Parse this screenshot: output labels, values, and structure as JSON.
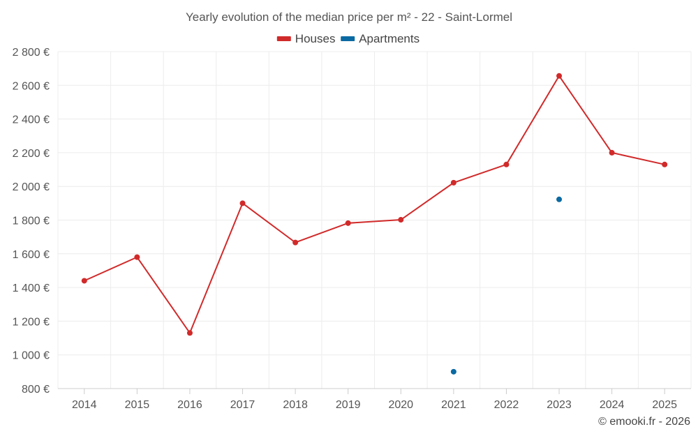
{
  "chart_data": {
    "type": "line",
    "title": "Yearly evolution of the median price per m² - 22 - Saint-Lormel",
    "categories": [
      "2014",
      "2015",
      "2016",
      "2017",
      "2018",
      "2019",
      "2020",
      "2021",
      "2022",
      "2023",
      "2024",
      "2025"
    ],
    "series": [
      {
        "name": "Houses",
        "color": "#d12a2a",
        "values": [
          1440,
          1580,
          1130,
          1900,
          1667,
          1782,
          1802,
          2022,
          2130,
          2656,
          2200,
          2130
        ]
      },
      {
        "name": "Apartments",
        "color": "#0b6aa2",
        "values": [
          null,
          null,
          null,
          null,
          null,
          null,
          null,
          900,
          null,
          1923,
          null,
          null
        ]
      }
    ],
    "y_ticks": [
      "800 €",
      "1 000 €",
      "1 200 €",
      "1 400 €",
      "1 600 €",
      "1 800 €",
      "2 000 €",
      "2 200 €",
      "2 400 €",
      "2 600 €",
      "2 800 €"
    ],
    "ylim": [
      800,
      2800
    ],
    "xlabel": "",
    "ylabel": "",
    "grid": true,
    "legend_position": "top-center"
  },
  "credit": "© emooki.fr - 2026"
}
